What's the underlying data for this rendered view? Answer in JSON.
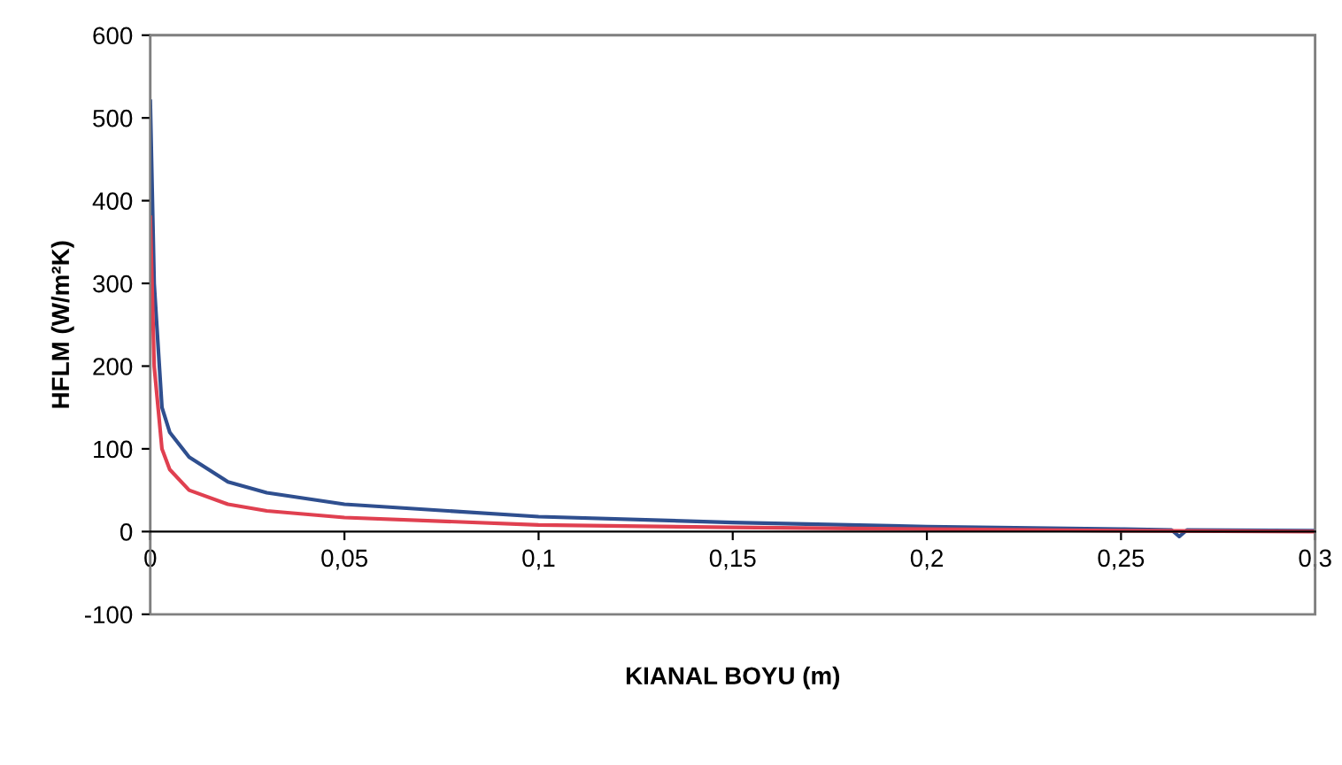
{
  "chart_data": {
    "type": "line",
    "xlabel": "KIANAL BOYU (m)",
    "ylabel": "HFLM (W/m²K)",
    "xlim": [
      0,
      0.3
    ],
    "ylim": [
      -100,
      600
    ],
    "xticks": [
      0,
      {
        "value": 0.05,
        "label": "0,05"
      },
      {
        "value": 0.1,
        "label": "0,1"
      },
      {
        "value": 0.15,
        "label": "0,15"
      },
      {
        "value": 0.2,
        "label": "0,2"
      },
      {
        "value": 0.25,
        "label": "0,25"
      },
      {
        "value": 0.3,
        "label": "0,3"
      }
    ],
    "yticks": [
      -100,
      0,
      100,
      200,
      300,
      400,
      500,
      600
    ],
    "grid": false,
    "marker": "none",
    "line_style": "solid",
    "series": [
      {
        "color": "#2f4f8f",
        "x": [
          0,
          0.001,
          0.003,
          0.005,
          0.01,
          0.02,
          0.03,
          0.05,
          0.1,
          0.15,
          0.2,
          0.25,
          0.263,
          0.265,
          0.267,
          0.3
        ],
        "values": [
          520,
          300,
          150,
          120,
          90,
          60,
          47,
          33,
          18,
          11,
          6,
          3,
          2,
          -6,
          2,
          1
        ]
      },
      {
        "color": "#e04050",
        "x": [
          0,
          0.001,
          0.003,
          0.005,
          0.01,
          0.02,
          0.03,
          0.05,
          0.1,
          0.15,
          0.2,
          0.25,
          0.3
        ],
        "values": [
          380,
          200,
          100,
          75,
          50,
          33,
          25,
          17,
          8,
          5,
          3,
          1,
          0
        ]
      }
    ]
  }
}
